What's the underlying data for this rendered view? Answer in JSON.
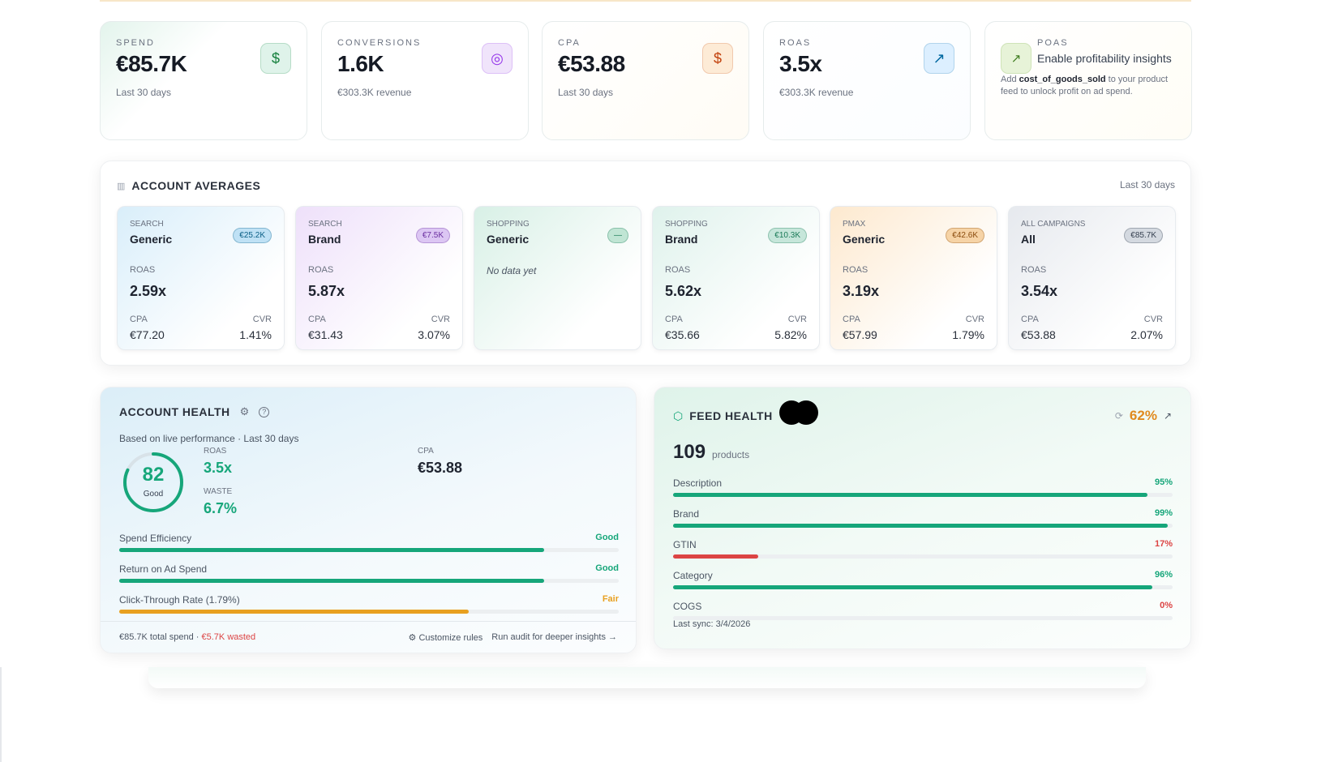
{
  "kpis": [
    {
      "label": "SPEND",
      "value": "€85.7K",
      "sub": "Last 30 days",
      "icon": "dollar-icon",
      "color": "#15803d",
      "bg": "#dff3ea"
    },
    {
      "label": "CONVERSIONS",
      "value": "1.6K",
      "sub": "€303.3K revenue",
      "icon": "target-icon",
      "color": "#9333ea",
      "bg": "#f0e4fb"
    },
    {
      "label": "CPA",
      "value": "€53.88",
      "sub": "Last 30 days",
      "icon": "dollar-icon",
      "color": "#c2410c",
      "bg": "#fdebd6"
    },
    {
      "label": "ROAS",
      "value": "3.5x",
      "sub": "€303.3K revenue",
      "icon": "trending-up-icon",
      "color": "#0369a1",
      "bg": "#dcefff"
    }
  ],
  "poas": {
    "label": "POAS",
    "title": "Enable profitability insights",
    "pre": "Add ",
    "field": "cost_of_goods_sold",
    "post": " to your product feed to unlock profit on ad spend.",
    "icon": "trending-up-icon"
  },
  "averages": {
    "title": "ACCOUNT AVERAGES",
    "period": "Last 30 days",
    "roas_label": "ROAS",
    "cpa_label": "CPA",
    "cvr_label": "CVR",
    "cards": [
      {
        "type": "SEARCH",
        "name": "Generic",
        "spend": "€25.2K",
        "roas": "2.59x",
        "cpa": "€77.20",
        "cvr": "1.41%"
      },
      {
        "type": "SEARCH",
        "name": "Brand",
        "spend": "€7.5K",
        "roas": "5.87x",
        "cpa": "€31.43",
        "cvr": "3.07%"
      },
      {
        "type": "SHOPPING",
        "name": "Generic",
        "spend": "—",
        "empty": "No data yet"
      },
      {
        "type": "SHOPPING",
        "name": "Brand",
        "spend": "€10.3K",
        "roas": "5.62x",
        "cpa": "€35.66",
        "cvr": "5.82%"
      },
      {
        "type": "PMAX",
        "name": "Generic",
        "spend": "€42.6K",
        "roas": "3.19x",
        "cpa": "€57.99",
        "cvr": "1.79%"
      },
      {
        "type": "ALL CAMPAIGNS",
        "name": "All",
        "spend": "€85.7K",
        "roas": "3.54x",
        "cpa": "€53.88",
        "cvr": "2.07%"
      }
    ]
  },
  "health": {
    "title": "ACCOUNT HEALTH",
    "subtitle": "Based on live performance · Last 30 days",
    "score": "82",
    "score_value": 82,
    "score_label": "Good",
    "roas_label": "ROAS",
    "roas": "3.5x",
    "waste_label": "WASTE",
    "waste": "6.7%",
    "cpa_label": "CPA",
    "cpa": "€53.88",
    "bars": [
      {
        "label": "Spend Efficiency",
        "status": "Good",
        "pct": 85,
        "color": "#16a67a"
      },
      {
        "label": "Return on Ad Spend",
        "status": "Good",
        "pct": 85,
        "color": "#16a67a"
      },
      {
        "label": "Click-Through Rate (1.79%)",
        "status": "Fair",
        "pct": 70,
        "color": "#e8a020"
      }
    ],
    "footer_spend": "€85.7K total spend · ",
    "footer_wasted": "€5.7K wasted",
    "customize": "Customize rules",
    "audit": "Run audit for deeper insights →"
  },
  "feed": {
    "title": "FEED HEALTH",
    "score": "62%",
    "count": "109",
    "count_label": "products",
    "bars": [
      {
        "label": "Description",
        "value": "95%",
        "pct": 95,
        "color": "#16a67a"
      },
      {
        "label": "Brand",
        "value": "99%",
        "pct": 99,
        "color": "#16a67a"
      },
      {
        "label": "GTIN",
        "value": "17%",
        "pct": 17,
        "color": "#dc4444"
      },
      {
        "label": "Category",
        "value": "96%",
        "pct": 96,
        "color": "#16a67a"
      },
      {
        "label": "COGS",
        "value": "0%",
        "pct": 0,
        "color": "#dc4444"
      }
    ],
    "last_sync": "Last sync: 3/4/2026"
  }
}
